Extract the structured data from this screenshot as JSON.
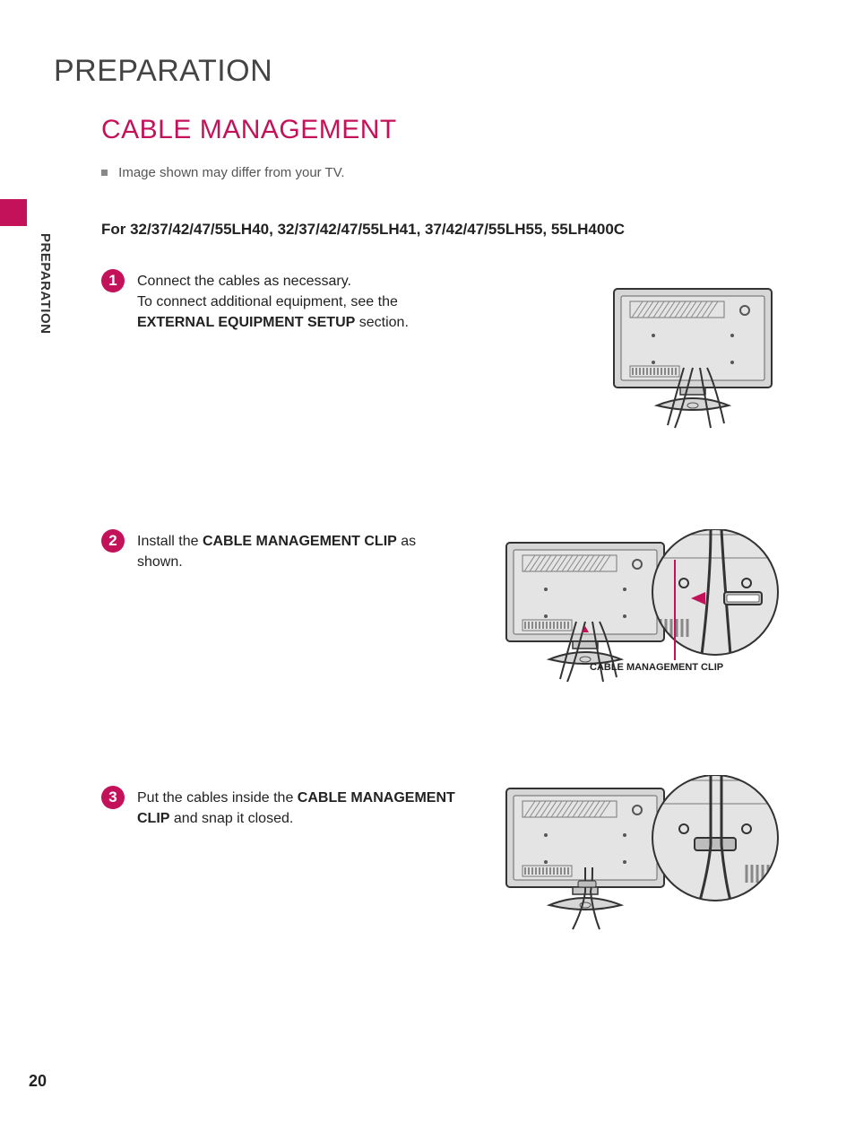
{
  "page": {
    "number": "20",
    "title": "PREPARATION",
    "side_label": "PREPARATION"
  },
  "section": {
    "title": "CABLE MANAGEMENT",
    "note": "Image shown may differ from your TV.",
    "model_line": "For 32/37/42/47/55LH40, 32/37/42/47/55LH41, 37/42/47/55LH55, 55LH400C"
  },
  "steps": [
    {
      "num": "1",
      "text_parts": [
        {
          "t": "Connect the cables as necessary.",
          "bold": false
        },
        {
          "t": "\nTo connect additional equipment, see the ",
          "bold": false
        },
        {
          "t": "EXTERNAL EQUIPMENT SETUP",
          "bold": true
        },
        {
          "t": " section.",
          "bold": false
        }
      ]
    },
    {
      "num": "2",
      "text_parts": [
        {
          "t": "Install the ",
          "bold": false
        },
        {
          "t": "CABLE MANAGEMENT CLIP",
          "bold": true
        },
        {
          "t": "  as shown.",
          "bold": false
        }
      ],
      "callout_label": "CABLE MANAGEMENT CLIP"
    },
    {
      "num": "3",
      "text_parts": [
        {
          "t": "Put the cables inside the ",
          "bold": false
        },
        {
          "t": "CABLE MANAGEMENT CLIP",
          "bold": true
        },
        {
          "t": "  and snap it closed.",
          "bold": false
        }
      ]
    }
  ],
  "colors": {
    "accent": "#c4125a",
    "ink": "#222222",
    "grey": "#555555"
  }
}
